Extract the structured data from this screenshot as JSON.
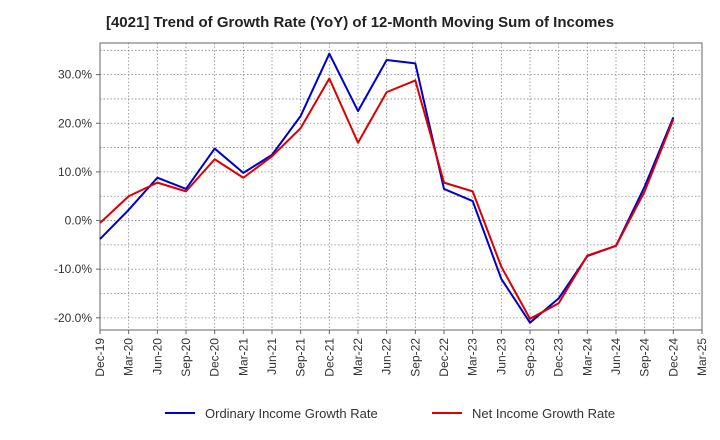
{
  "chart_data": {
    "type": "line",
    "title": "[4021]  Trend of Growth Rate (YoY) of 12-Month Moving Sum of Incomes",
    "xlabel": "",
    "ylabel": "",
    "x": [
      "Dec-19",
      "Mar-20",
      "Jun-20",
      "Sep-20",
      "Dec-20",
      "Mar-21",
      "Jun-21",
      "Sep-21",
      "Dec-21",
      "Mar-22",
      "Jun-22",
      "Sep-22",
      "Dec-22",
      "Mar-23",
      "Jun-23",
      "Sep-23",
      "Dec-23",
      "Mar-24",
      "Jun-24",
      "Sep-24",
      "Dec-24"
    ],
    "x_ticks": [
      "Dec-19",
      "Mar-20",
      "Jun-20",
      "Sep-20",
      "Dec-20",
      "Mar-21",
      "Jun-21",
      "Sep-21",
      "Dec-21",
      "Mar-22",
      "Jun-22",
      "Sep-22",
      "Dec-22",
      "Mar-23",
      "Jun-23",
      "Sep-23",
      "Dec-23",
      "Mar-24",
      "Jun-24",
      "Sep-24",
      "Dec-24",
      "Mar-25"
    ],
    "y_ticks": [
      -20,
      -10,
      0,
      10,
      20,
      30
    ],
    "y_tick_labels": [
      "-20.0%",
      "-10.0%",
      "0.0%",
      "10.0%",
      "20.0%",
      "30.0%"
    ],
    "ylim": [
      -22.5,
      36.5
    ],
    "grid": true,
    "legend_position": "bottom",
    "series": [
      {
        "name": "Ordinary Income Growth Rate",
        "color": "#0000cc",
        "values": [
          -3.8,
          2.2,
          8.8,
          6.5,
          14.8,
          9.8,
          13.5,
          21.5,
          34.3,
          22.5,
          33.0,
          32.3,
          6.5,
          4.0,
          -12.0,
          -21.0,
          -16.0,
          -7.3,
          -5.2,
          7.0,
          21.2
        ]
      },
      {
        "name": "Net Income Growth Rate",
        "color": "#dd0000",
        "values": [
          -0.5,
          5.0,
          7.8,
          6.0,
          12.6,
          8.8,
          13.2,
          19.0,
          29.2,
          16.0,
          26.4,
          28.8,
          7.8,
          6.0,
          -9.5,
          -20.2,
          -17.0,
          -7.2,
          -5.2,
          6.0,
          20.8
        ]
      }
    ]
  }
}
